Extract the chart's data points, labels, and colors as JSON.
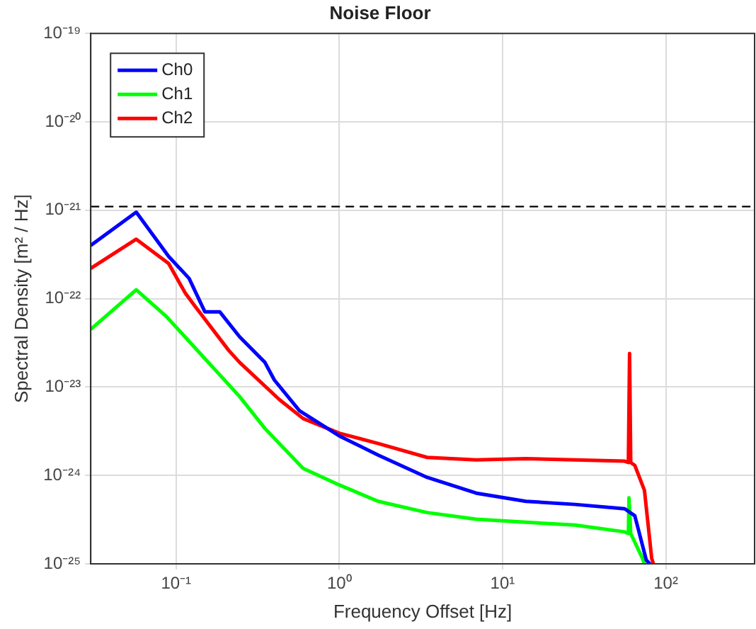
{
  "chart_data": {
    "type": "line",
    "title": "Noise Floor",
    "xlabel": "Frequency Offset [Hz]",
    "ylabel": "Spectral Density [m² / Hz]",
    "log": "xy",
    "grid": true,
    "legend": "top left",
    "marker": "none",
    "line_style": "solid",
    "xlim": [
      0.03,
      350
    ],
    "xticks": [
      {
        "value": 0.1,
        "label": "10⁻¹"
      },
      {
        "value": 1,
        "label": "10⁰"
      },
      {
        "value": 10,
        "label": "10¹"
      },
      {
        "value": 100,
        "label": "10²"
      }
    ],
    "ylim": [
      1e-25,
      1e-19
    ],
    "yticks": [
      {
        "value": 1e-25,
        "label": "10⁻²⁵"
      },
      {
        "value": 1e-24,
        "label": "10⁻²⁴"
      },
      {
        "value": 1e-23,
        "label": "10⁻²³"
      },
      {
        "value": 1e-22,
        "label": "10⁻²²"
      },
      {
        "value": 1e-21,
        "label": "10⁻²¹"
      },
      {
        "value": 1e-20,
        "label": "10⁻²⁰"
      },
      {
        "value": 1e-19,
        "label": "10⁻¹⁹"
      }
    ],
    "ref_lines": [
      {
        "axis": "y",
        "value": 1.1e-21,
        "label": null,
        "color": "#000000",
        "line_style": "dashed"
      }
    ],
    "series": [
      {
        "name": "Ch0",
        "color": "#0000ff",
        "x": [
          0.03,
          0.057,
          0.09,
          0.12,
          0.15,
          0.185,
          0.245,
          0.35,
          0.4,
          0.57,
          1.0,
          1.73,
          3.45,
          6.9,
          13.9,
          27.8,
          56,
          64.6,
          76,
          80
        ],
        "values": [
          4e-22,
          9.5e-22,
          3e-22,
          1.7e-22,
          7.1e-23,
          7.1e-23,
          3.7e-23,
          1.9e-23,
          1.2e-23,
          5.4e-24,
          2.8e-24,
          1.7e-24,
          9.5e-25,
          6.3e-25,
          5.1e-25,
          4.7e-25,
          4.2e-25,
          3.5e-25,
          1.1e-25,
          1e-25
        ]
      },
      {
        "name": "Ch1",
        "color": "#00ff00",
        "x": [
          0.03,
          0.057,
          0.087,
          0.15,
          0.245,
          0.35,
          0.6,
          1.0,
          1.73,
          3.45,
          6.9,
          13.9,
          27.8,
          56,
          59,
          59.5,
          61,
          72,
          74
        ],
        "values": [
          4.5e-23,
          1.26e-22,
          6.3e-23,
          2.1e-23,
          7.8e-24,
          3.4e-24,
          1.2e-24,
          7.8e-25,
          5.1e-25,
          3.8e-25,
          3.2e-25,
          2.95e-25,
          2.75e-25,
          2.3e-25,
          2.2e-25,
          5.6e-25,
          2.2e-25,
          1.15e-25,
          1e-25
        ]
      },
      {
        "name": "Ch2",
        "color": "#ff0000",
        "x": [
          0.03,
          0.057,
          0.09,
          0.114,
          0.13,
          0.21,
          0.245,
          0.43,
          0.6,
          1.0,
          1.73,
          3.45,
          6.9,
          13.9,
          27.8,
          56,
          59,
          60,
          61,
          64.6,
          74,
          82,
          84
        ],
        "values": [
          2.2e-22,
          4.7e-22,
          2.5e-22,
          1.15e-22,
          8.3e-23,
          2.6e-23,
          1.9e-23,
          7.2e-24,
          4.4e-24,
          3e-24,
          2.3e-24,
          1.6e-24,
          1.5e-24,
          1.55e-24,
          1.5e-24,
          1.45e-24,
          1.4e-24,
          2.4e-23,
          1.4e-24,
          1.3e-24,
          6.8e-25,
          1.15e-25,
          1e-25
        ]
      }
    ]
  }
}
